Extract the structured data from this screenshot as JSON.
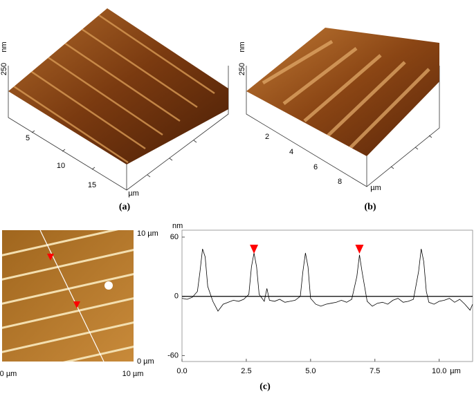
{
  "panel_a": {
    "z_tick": 250,
    "z_unit": "nm",
    "ticks": [
      5,
      10,
      15
    ],
    "unit": "µm",
    "caption": "(a)"
  },
  "panel_b": {
    "z_tick": 250,
    "z_unit": "nm",
    "ticks": [
      2,
      4,
      6,
      8
    ],
    "unit": "µm",
    "caption": "(b)"
  },
  "panel_c_image": {
    "top_right": "10 µm",
    "bottom_right": "0 µm",
    "bottom_left": "0 µm",
    "bottom_x": "10 µm"
  },
  "chart_data": {
    "type": "line",
    "y_label": "nm",
    "x_unit": "µm",
    "caption": "(c)",
    "color": "#000000",
    "x": [
      0,
      0.2,
      0.4,
      0.6,
      0.7,
      0.8,
      0.9,
      1.0,
      1.2,
      1.4,
      1.6,
      1.8,
      2.0,
      2.2,
      2.4,
      2.6,
      2.7,
      2.8,
      2.9,
      3.0,
      3.2,
      3.3,
      3.4,
      3.6,
      3.8,
      4.0,
      4.2,
      4.4,
      4.6,
      4.7,
      4.8,
      4.9,
      5.0,
      5.2,
      5.4,
      5.6,
      5.8,
      6.0,
      6.2,
      6.4,
      6.6,
      6.8,
      6.9,
      7.0,
      7.2,
      7.4,
      7.6,
      7.8,
      8.0,
      8.2,
      8.4,
      8.6,
      8.8,
      9.0,
      9.2,
      9.3,
      9.4,
      9.5,
      9.6,
      9.8,
      10.0,
      10.2,
      10.4,
      10.6,
      10.8,
      11.0,
      11.2,
      11.3
    ],
    "values": [
      -2,
      -3,
      -1,
      5,
      25,
      48,
      40,
      10,
      -5,
      -15,
      -8,
      -6,
      -4,
      -5,
      -3,
      2,
      30,
      44,
      30,
      2,
      -5,
      8,
      -4,
      -5,
      -3,
      -6,
      -5,
      -4,
      0,
      25,
      44,
      30,
      -2,
      -8,
      -10,
      -8,
      -7,
      -6,
      -4,
      -6,
      -3,
      20,
      42,
      25,
      -5,
      -10,
      -7,
      -6,
      -8,
      -4,
      -2,
      -6,
      -5,
      -3,
      25,
      48,
      35,
      5,
      -6,
      -8,
      -5,
      -4,
      -2,
      -6,
      -3,
      -8,
      -14,
      -8
    ],
    "markers_x": [
      2.8,
      6.9
    ],
    "marker_color": "#ff0000",
    "xlim": [
      0,
      11.3
    ],
    "ylim": [
      -66,
      67
    ],
    "xticks": [
      {
        "value": 0,
        "label": "0.0"
      },
      {
        "value": 2.5,
        "label": "2.5"
      },
      {
        "value": 5,
        "label": "5.0"
      },
      {
        "value": 7.5,
        "label": "7.5"
      },
      {
        "value": 10,
        "label": "10.0"
      }
    ],
    "yticks": [
      60,
      0,
      -60
    ],
    "zero_line": true
  }
}
